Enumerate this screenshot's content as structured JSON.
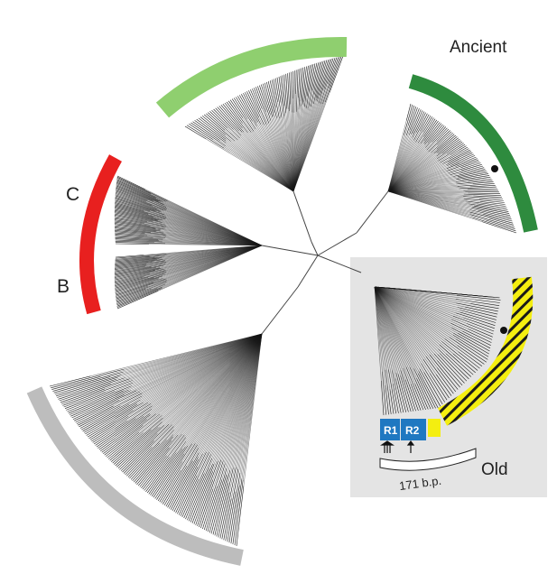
{
  "labels": {
    "ancient": "Ancient",
    "old": "Old",
    "clade_c": "C",
    "clade_b": "B",
    "repeat_1": "R1",
    "repeat_2": "R2",
    "length": "171 b.p."
  },
  "colors": {
    "ancient_arc": "#2e8b3e",
    "light_green_arc": "#8fcf6f",
    "red_arc": "#e8201f",
    "grey_arc": "#bdbdbd",
    "old_arc": "#f4ee10",
    "old_panel": "#e4e4e4",
    "repeat_box": "#1f78c1",
    "branch": "#1a1a1a"
  }
}
